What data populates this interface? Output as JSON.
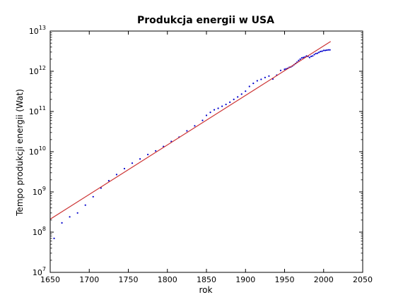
{
  "chart_data": {
    "type": "scatter",
    "title": "Produkcja energii w USA",
    "xlabel": "rok",
    "ylabel": "Tempo produkcji energii (Wat)",
    "xlim": [
      1650,
      2050
    ],
    "ylim": [
      10000000.0,
      10000000000000.0
    ],
    "yscale": "log",
    "grid": false,
    "x_ticks": [
      1650,
      1700,
      1750,
      1800,
      1850,
      1900,
      1950,
      2000,
      2050
    ],
    "y_ticks": [
      {
        "base": "10",
        "exp": "7",
        "value": 10000000.0
      },
      {
        "base": "10",
        "exp": "8",
        "value": 100000000.0
      },
      {
        "base": "10",
        "exp": "9",
        "value": 1000000000.0
      },
      {
        "base": "10",
        "exp": "10",
        "value": 10000000000.0
      },
      {
        "base": "10",
        "exp": "11",
        "value": 100000000000.0
      },
      {
        "base": "10",
        "exp": "12",
        "value": 1000000000000.0
      },
      {
        "base": "10",
        "exp": "13",
        "value": 10000000000000.0
      }
    ],
    "series": [
      {
        "type": "scatter",
        "color": "#0000cc",
        "points": [
          [
            1655,
            70000000.0
          ],
          [
            1665,
            170000000.0
          ],
          [
            1675,
            240000000.0
          ],
          [
            1685,
            300000000.0
          ],
          [
            1695,
            470000000.0
          ],
          [
            1705,
            760000000.0
          ],
          [
            1715,
            1250000000.0
          ],
          [
            1725,
            1900000000.0
          ],
          [
            1735,
            2700000000.0
          ],
          [
            1745,
            3800000000.0
          ],
          [
            1755,
            5200000000.0
          ],
          [
            1765,
            6600000000.0
          ],
          [
            1775,
            8500000000.0
          ],
          [
            1785,
            10500000000.0
          ],
          [
            1795,
            13500000000.0
          ],
          [
            1805,
            18000000000.0
          ],
          [
            1815,
            23000000000.0
          ],
          [
            1825,
            33000000000.0
          ],
          [
            1835,
            44000000000.0
          ],
          [
            1845,
            60000000000.0
          ],
          [
            1850,
            80000000000.0
          ],
          [
            1855,
            95000000000.0
          ],
          [
            1860,
            110000000000.0
          ],
          [
            1865,
            120000000000.0
          ],
          [
            1870,
            135000000000.0
          ],
          [
            1875,
            150000000000.0
          ],
          [
            1880,
            170000000000.0
          ],
          [
            1885,
            200000000000.0
          ],
          [
            1890,
            230000000000.0
          ],
          [
            1895,
            270000000000.0
          ],
          [
            1900,
            320000000000.0
          ],
          [
            1905,
            420000000000.0
          ],
          [
            1910,
            500000000000.0
          ],
          [
            1915,
            580000000000.0
          ],
          [
            1920,
            630000000000.0
          ],
          [
            1925,
            700000000000.0
          ],
          [
            1930,
            760000000000.0
          ],
          [
            1935,
            640000000000.0
          ],
          [
            1940,
            800000000000.0
          ],
          [
            1945,
            1050000000000.0
          ],
          [
            1950,
            1120000000000.0
          ],
          [
            1952,
            1150000000000.0
          ],
          [
            1954,
            1180000000000.0
          ],
          [
            1956,
            1250000000000.0
          ],
          [
            1958,
            1280000000000.0
          ],
          [
            1960,
            1350000000000.0
          ],
          [
            1962,
            1450000000000.0
          ],
          [
            1964,
            1550000000000.0
          ],
          [
            1966,
            1680000000000.0
          ],
          [
            1968,
            1850000000000.0
          ],
          [
            1970,
            2000000000000.0
          ],
          [
            1972,
            2150000000000.0
          ],
          [
            1974,
            2200000000000.0
          ],
          [
            1976,
            2250000000000.0
          ],
          [
            1978,
            2400000000000.0
          ],
          [
            1980,
            2350000000000.0
          ],
          [
            1982,
            2200000000000.0
          ],
          [
            1984,
            2350000000000.0
          ],
          [
            1986,
            2400000000000.0
          ],
          [
            1988,
            2600000000000.0
          ],
          [
            1990,
            2750000000000.0
          ],
          [
            1992,
            2800000000000.0
          ],
          [
            1994,
            2950000000000.0
          ],
          [
            1996,
            3100000000000.0
          ],
          [
            1998,
            3150000000000.0
          ],
          [
            2000,
            3300000000000.0
          ],
          [
            2002,
            3300000000000.0
          ],
          [
            2004,
            3350000000000.0
          ],
          [
            2006,
            3400000000000.0
          ],
          [
            2008,
            3400000000000.0
          ]
        ]
      },
      {
        "type": "line",
        "color": "#cc3333",
        "points": [
          [
            1650,
            210000000.0
          ],
          [
            2009,
            5500000000000.0
          ]
        ]
      }
    ]
  }
}
